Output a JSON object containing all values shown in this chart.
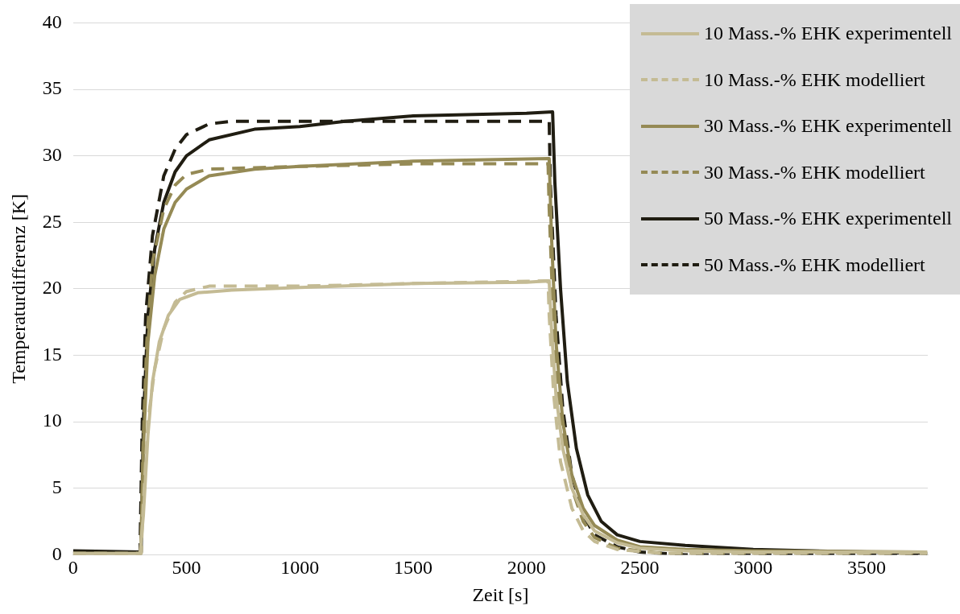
{
  "chart_data": {
    "type": "line",
    "xlabel": "Zeit [s]",
    "ylabel": "Temperaturdifferenz [K]",
    "xlim": [
      0,
      3770
    ],
    "xticks": [
      0,
      500,
      1000,
      1500,
      2000,
      2500,
      3000,
      3500
    ],
    "ylim": [
      0,
      40
    ],
    "yticks": [
      0,
      5,
      10,
      15,
      20,
      25,
      30,
      35,
      40
    ],
    "grid": "y",
    "legend": "top right",
    "marker": "none",
    "series": [
      {
        "name": "10 Mass.-% EHK experimentell",
        "color": "#c4bb94",
        "line_style": "solid",
        "x": [
          0,
          295,
          310,
          330,
          350,
          380,
          420,
          470,
          550,
          700,
          1000,
          1500,
          2000,
          2100,
          2110,
          2130,
          2160,
          2200,
          2250,
          2300,
          2400,
          2500,
          2700,
          3000,
          3500,
          3767
        ],
        "values": [
          0.1,
          0.1,
          3,
          9,
          13,
          16,
          18,
          19.2,
          19.7,
          19.9,
          20.1,
          20.4,
          20.5,
          20.6,
          17,
          12,
          8,
          5,
          3,
          1.8,
          0.9,
          0.5,
          0.3,
          0.2,
          0.2,
          0.2
        ]
      },
      {
        "name": "10 Mass.-% EHK modelliert",
        "color": "#c4bb94",
        "line_style": "dashed",
        "x": [
          0,
          300,
          310,
          330,
          360,
          400,
          450,
          500,
          600,
          1000,
          1500,
          2095,
          2100,
          2120,
          2150,
          2200,
          2250,
          2300,
          2400,
          2600,
          3767
        ],
        "values": [
          0.1,
          0.1,
          4,
          10,
          14,
          17,
          19,
          19.8,
          20.2,
          20.2,
          20.4,
          20.6,
          18,
          12,
          7,
          3.5,
          1.8,
          1,
          0.4,
          0.1,
          0.1
        ]
      },
      {
        "name": "30 Mass.-% EHK experimentell",
        "color": "#958a55",
        "line_style": "solid",
        "x": [
          0,
          298,
          310,
          330,
          360,
          400,
          450,
          500,
          600,
          800,
          1000,
          1500,
          2100,
          2110,
          2130,
          2160,
          2200,
          2250,
          2300,
          2400,
          2500,
          2700,
          3000,
          3767
        ],
        "values": [
          0.1,
          0.1,
          8,
          16,
          21,
          24.5,
          26.5,
          27.5,
          28.5,
          29,
          29.2,
          29.6,
          29.8,
          24,
          16,
          10,
          6,
          3.5,
          2.2,
          1.1,
          0.6,
          0.4,
          0.3,
          0.2
        ]
      },
      {
        "name": "30 Mass.-% EHK modelliert",
        "color": "#958a55",
        "line_style": "dashed",
        "x": [
          0,
          300,
          308,
          325,
          350,
          400,
          450,
          500,
          600,
          800,
          1000,
          1500,
          2095,
          2100,
          2120,
          2150,
          2200,
          2250,
          2300,
          2400,
          2600,
          3767
        ],
        "values": [
          0.1,
          0.1,
          8,
          16,
          22,
          26,
          27.8,
          28.6,
          29,
          29.1,
          29.2,
          29.4,
          29.4,
          26,
          17,
          10,
          5,
          2.5,
          1.3,
          0.5,
          0.1,
          0.1
        ]
      },
      {
        "name": "50 Mass.-% EHK experimentell",
        "color": "#201d12",
        "line_style": "solid",
        "x": [
          0,
          300,
          310,
          330,
          360,
          400,
          450,
          500,
          600,
          800,
          1000,
          1200,
          1500,
          2000,
          2115,
          2125,
          2150,
          2180,
          2220,
          2270,
          2330,
          2400,
          2500,
          2700,
          3000,
          3500,
          3767
        ],
        "values": [
          0.3,
          0.2,
          10,
          18,
          23,
          26.5,
          28.8,
          30,
          31.2,
          32,
          32.2,
          32.6,
          33,
          33.2,
          33.3,
          28,
          20,
          13,
          8,
          4.5,
          2.5,
          1.5,
          1,
          0.7,
          0.4,
          0.2,
          0.1
        ]
      },
      {
        "name": "50 Mass.-% EHK modelliert",
        "color": "#201d12",
        "line_style": "dashed",
        "x": [
          0,
          295,
          305,
          320,
          350,
          400,
          450,
          500,
          600,
          700,
          1000,
          2100,
          2105,
          2130,
          2160,
          2200,
          2250,
          2300,
          2400,
          2500,
          2700,
          3767
        ],
        "values": [
          0.2,
          0.2,
          10,
          18,
          24,
          28.5,
          30.5,
          31.6,
          32.4,
          32.6,
          32.6,
          32.6,
          28,
          18,
          11,
          6,
          3,
          1.5,
          0.6,
          0.2,
          0,
          0
        ]
      }
    ]
  }
}
